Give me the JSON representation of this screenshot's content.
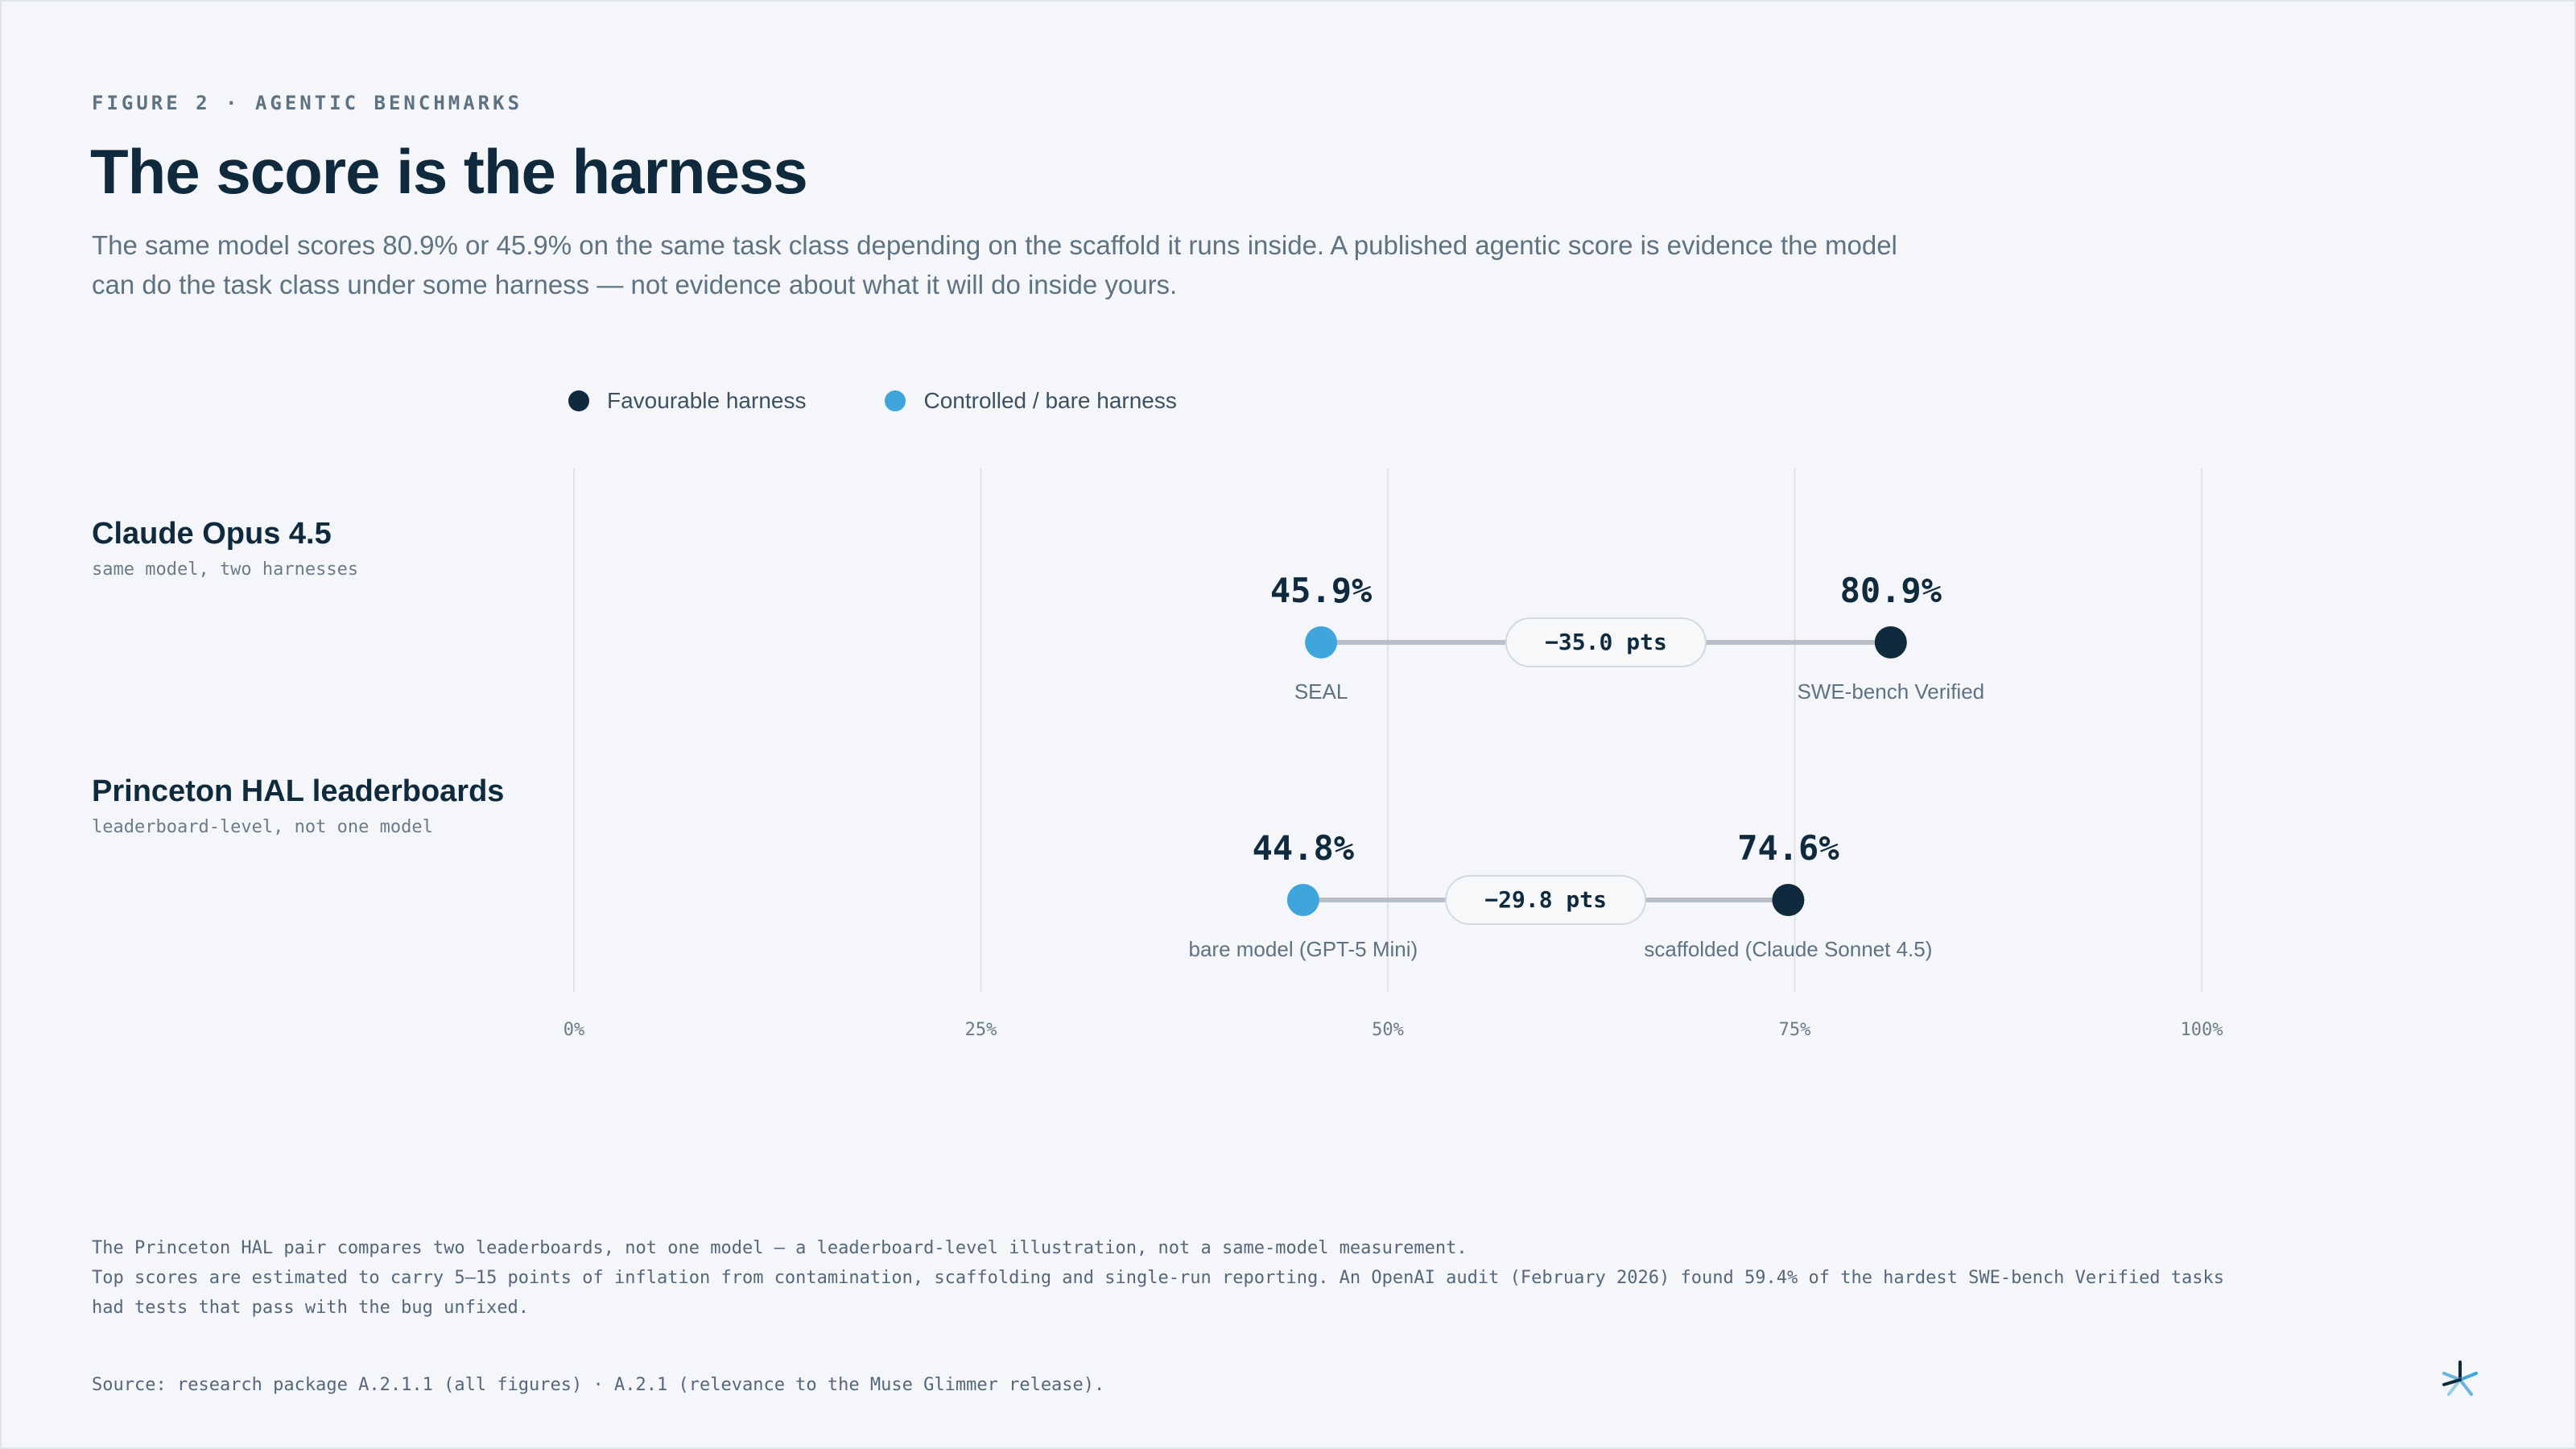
{
  "header": {
    "eyebrow": "FIGURE 2 · AGENTIC BENCHMARKS",
    "title": "The score is the harness",
    "subtitle": "The same model scores 80.9% or 45.9% on the same task class depending on the scaffold it runs inside. A published agentic score is evidence the model can do the task class under some harness — not evidence about what it will do inside yours."
  },
  "legend": [
    {
      "label": "Favourable harness",
      "color": "#0f2a3d"
    },
    {
      "label": "Controlled / bare harness",
      "color": "#3ea6dc"
    }
  ],
  "rows": [
    {
      "name": "Claude Opus 4.5",
      "note": "same model, two harnesses"
    },
    {
      "name": "Princeton HAL leaderboards",
      "note": "leaderboard-level, not one model"
    }
  ],
  "chart_data": {
    "type": "dumbbell",
    "title": "The score is the harness",
    "xlim": [
      0,
      100
    ],
    "x_ticks": [
      "0%",
      "25%",
      "50%",
      "75%",
      "100%"
    ],
    "x_tick_values": [
      0,
      25,
      50,
      75,
      100
    ],
    "grid": true,
    "legend_position": "top-left",
    "series": [
      {
        "name": "Favourable harness",
        "color": "#0f2a3d"
      },
      {
        "name": "Controlled / bare harness",
        "color": "#3ea6dc"
      }
    ],
    "rows": [
      {
        "category": "Claude Opus 4.5",
        "controlled": {
          "value": 45.9,
          "value_label": "45.9%",
          "label": "SEAL"
        },
        "favourable": {
          "value": 80.9,
          "value_label": "80.9%",
          "label": "SWE-bench Verified"
        },
        "delta_label": "−35.0 pts"
      },
      {
        "category": "Princeton HAL leaderboards",
        "controlled": {
          "value": 44.8,
          "value_label": "44.8%",
          "label": "bare model (GPT-5 Mini)"
        },
        "favourable": {
          "value": 74.6,
          "value_label": "74.6%",
          "label": "scaffolded (Claude Sonnet 4.5)"
        },
        "delta_label": "−29.8 pts"
      }
    ]
  },
  "footnotes": [
    "The Princeton HAL pair compares two leaderboards, not one model — a leaderboard-level illustration, not a same-model measurement.",
    "Top scores are estimated to carry 5–15 points of inflation from contamination, scaffolding and single-run reporting. An OpenAI audit (February 2026) found 59.4% of the hardest SWE-bench Verified tasks had tests that pass with the bug unfixed."
  ],
  "source": "Source: research package A.2.1.1 (all figures) · A.2.1 (relevance to the Muse Glimmer release).",
  "logo_icon": "asterisk-logo-icon"
}
